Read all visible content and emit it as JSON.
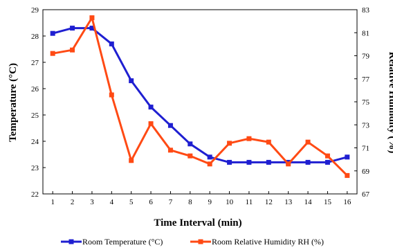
{
  "chart_data": {
    "type": "line",
    "xlabel": "Time Interval (min)",
    "ylabel": "Temperature (°C)",
    "y2label": "Relative Humidity (%)",
    "x": [
      1,
      2,
      3,
      4,
      5,
      6,
      7,
      8,
      9,
      10,
      11,
      12,
      13,
      14,
      15,
      16
    ],
    "xlim": [
      0.5,
      16.5
    ],
    "ylim": [
      22,
      29
    ],
    "y_ticks": [
      22,
      23,
      24,
      25,
      26,
      27,
      28,
      29
    ],
    "y2lim": [
      67,
      83
    ],
    "y2_ticks": [
      67,
      69,
      71,
      73,
      75,
      77,
      79,
      81,
      83
    ],
    "grid": false,
    "legend_position": "bottom",
    "series": [
      {
        "name": "Room Temperature (°C)",
        "axis": "left",
        "color": "#1f1fd1",
        "marker": "square",
        "values": [
          28.1,
          28.3,
          28.3,
          27.7,
          26.3,
          25.3,
          24.6,
          23.9,
          23.4,
          23.2,
          23.2,
          23.2,
          23.2,
          23.2,
          23.2,
          23.4
        ]
      },
      {
        "name": "Room Relative Humidity RH (%)",
        "axis": "right",
        "color": "#ff4a14",
        "marker": "square",
        "values": [
          79.2,
          79.5,
          82.3,
          75.6,
          69.9,
          73.1,
          70.8,
          70.3,
          69.6,
          71.4,
          71.8,
          71.5,
          69.6,
          71.5,
          70.3,
          68.6
        ]
      }
    ]
  }
}
